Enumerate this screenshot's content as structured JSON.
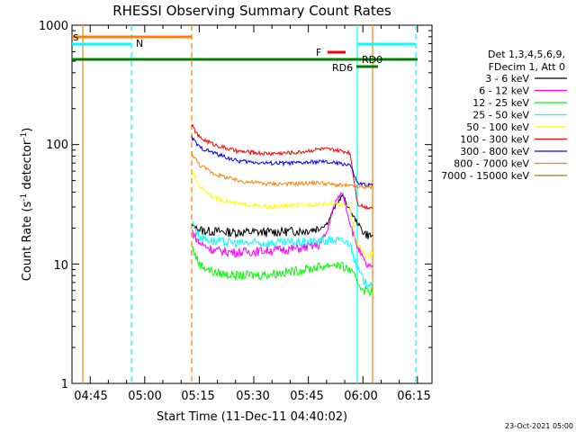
{
  "footer_stamp": "23-Oct-2021 05:00",
  "chart_data": {
    "type": "line",
    "title": "RHESSI Observing Summary Count Rates",
    "xlabel": "Start Time (11-Dec-11 04:40:02)",
    "ylabel_prefix": "Count Rate (s",
    "ylabel_sup1": "-1",
    "ylabel_mid": " detector",
    "ylabel_sup2": "-1",
    "ylabel_suffix": ")",
    "y_scale": "log",
    "ylim": [
      1,
      1000
    ],
    "x_ticks": [
      "04:45",
      "05:00",
      "05:15",
      "05:30",
      "05:45",
      "06:00",
      "06:15"
    ],
    "y_ticks": [
      "1",
      "10",
      "100",
      "1000"
    ],
    "legend_header": [
      "Det 1,3,4,5,6,9,",
      "FDecim 1, Att 0"
    ],
    "series": [
      {
        "name": "3 - 6 keV",
        "color": "#000000",
        "values": [
          [
            0,
            21
          ],
          [
            3,
            19
          ],
          [
            10,
            18.5
          ],
          [
            20,
            18.5
          ],
          [
            30,
            19
          ],
          [
            34,
            20
          ],
          [
            36,
            22
          ],
          [
            38,
            30
          ],
          [
            40,
            38
          ],
          [
            42,
            28
          ],
          [
            44,
            22
          ],
          [
            46,
            18
          ],
          [
            48,
            17
          ]
        ]
      },
      {
        "name": "6 - 12 keV",
        "color": "#ff00ff",
        "values": [
          [
            0,
            19
          ],
          [
            2,
            15
          ],
          [
            6,
            13
          ],
          [
            12,
            12.5
          ],
          [
            20,
            13
          ],
          [
            28,
            13.5
          ],
          [
            34,
            14.5
          ],
          [
            36,
            19
          ],
          [
            38,
            33
          ],
          [
            40,
            40
          ],
          [
            42,
            22
          ],
          [
            44,
            14
          ],
          [
            46,
            10
          ],
          [
            48,
            9
          ]
        ]
      },
      {
        "name": "12 - 25 keV",
        "color": "#00ff00",
        "values": [
          [
            0,
            14
          ],
          [
            2,
            10
          ],
          [
            6,
            8.5
          ],
          [
            12,
            8
          ],
          [
            20,
            8.2
          ],
          [
            28,
            8.8
          ],
          [
            34,
            9.5
          ],
          [
            38,
            10
          ],
          [
            42,
            9
          ],
          [
            44,
            7
          ],
          [
            46,
            6
          ],
          [
            48,
            6
          ]
        ]
      },
      {
        "name": "25 - 50 keV",
        "color": "#00ffff",
        "values": [
          [
            0,
            23
          ],
          [
            2,
            17
          ],
          [
            6,
            15.5
          ],
          [
            12,
            15
          ],
          [
            20,
            15
          ],
          [
            28,
            15.2
          ],
          [
            34,
            15.5
          ],
          [
            38,
            16
          ],
          [
            42,
            15
          ],
          [
            44,
            9
          ],
          [
            46,
            7
          ],
          [
            48,
            7
          ]
        ]
      },
      {
        "name": "50 - 100 keV",
        "color": "#ffff00",
        "values": [
          [
            0,
            60
          ],
          [
            2,
            45
          ],
          [
            6,
            36
          ],
          [
            12,
            32
          ],
          [
            20,
            30
          ],
          [
            28,
            31
          ],
          [
            34,
            32
          ],
          [
            38,
            32
          ],
          [
            42,
            30
          ],
          [
            44,
            14
          ],
          [
            46,
            12
          ],
          [
            48,
            12
          ]
        ]
      },
      {
        "name": "100 - 300 keV",
        "color": "#ff0000",
        "values": [
          [
            0,
            145
          ],
          [
            2,
            115
          ],
          [
            6,
            100
          ],
          [
            12,
            88
          ],
          [
            20,
            84
          ],
          [
            28,
            86
          ],
          [
            34,
            92
          ],
          [
            38,
            90
          ],
          [
            42,
            86
          ],
          [
            44,
            32
          ],
          [
            46,
            30
          ],
          [
            48,
            30
          ]
        ]
      },
      {
        "name": "300 - 800 keV",
        "color": "#0000ff",
        "values": [
          [
            0,
            115
          ],
          [
            2,
            95
          ],
          [
            6,
            85
          ],
          [
            12,
            73
          ],
          [
            20,
            70
          ],
          [
            28,
            70
          ],
          [
            34,
            72
          ],
          [
            38,
            70
          ],
          [
            42,
            68
          ],
          [
            44,
            47
          ],
          [
            46,
            46
          ],
          [
            48,
            46
          ]
        ]
      },
      {
        "name": "800 - 7000 keV",
        "color": "#ff8000",
        "values": [
          [
            0,
            85
          ],
          [
            2,
            68
          ],
          [
            6,
            57
          ],
          [
            12,
            50
          ],
          [
            20,
            47
          ],
          [
            28,
            47
          ],
          [
            34,
            48
          ],
          [
            38,
            46
          ],
          [
            42,
            45
          ],
          [
            44,
            44
          ],
          [
            46,
            44
          ],
          [
            48,
            44
          ]
        ]
      },
      {
        "name": "7000 - 15000 keV",
        "color": "#a07820",
        "values": []
      }
    ],
    "annotations": [
      {
        "label": "S",
        "color": "#ff8000"
      },
      {
        "label": "N",
        "color": "#00ffff"
      },
      {
        "label": "F",
        "color": "#ff0000"
      },
      {
        "label": "RD0",
        "color": "#00ffff"
      },
      {
        "label": "RD6",
        "color": "#008000"
      }
    ]
  }
}
